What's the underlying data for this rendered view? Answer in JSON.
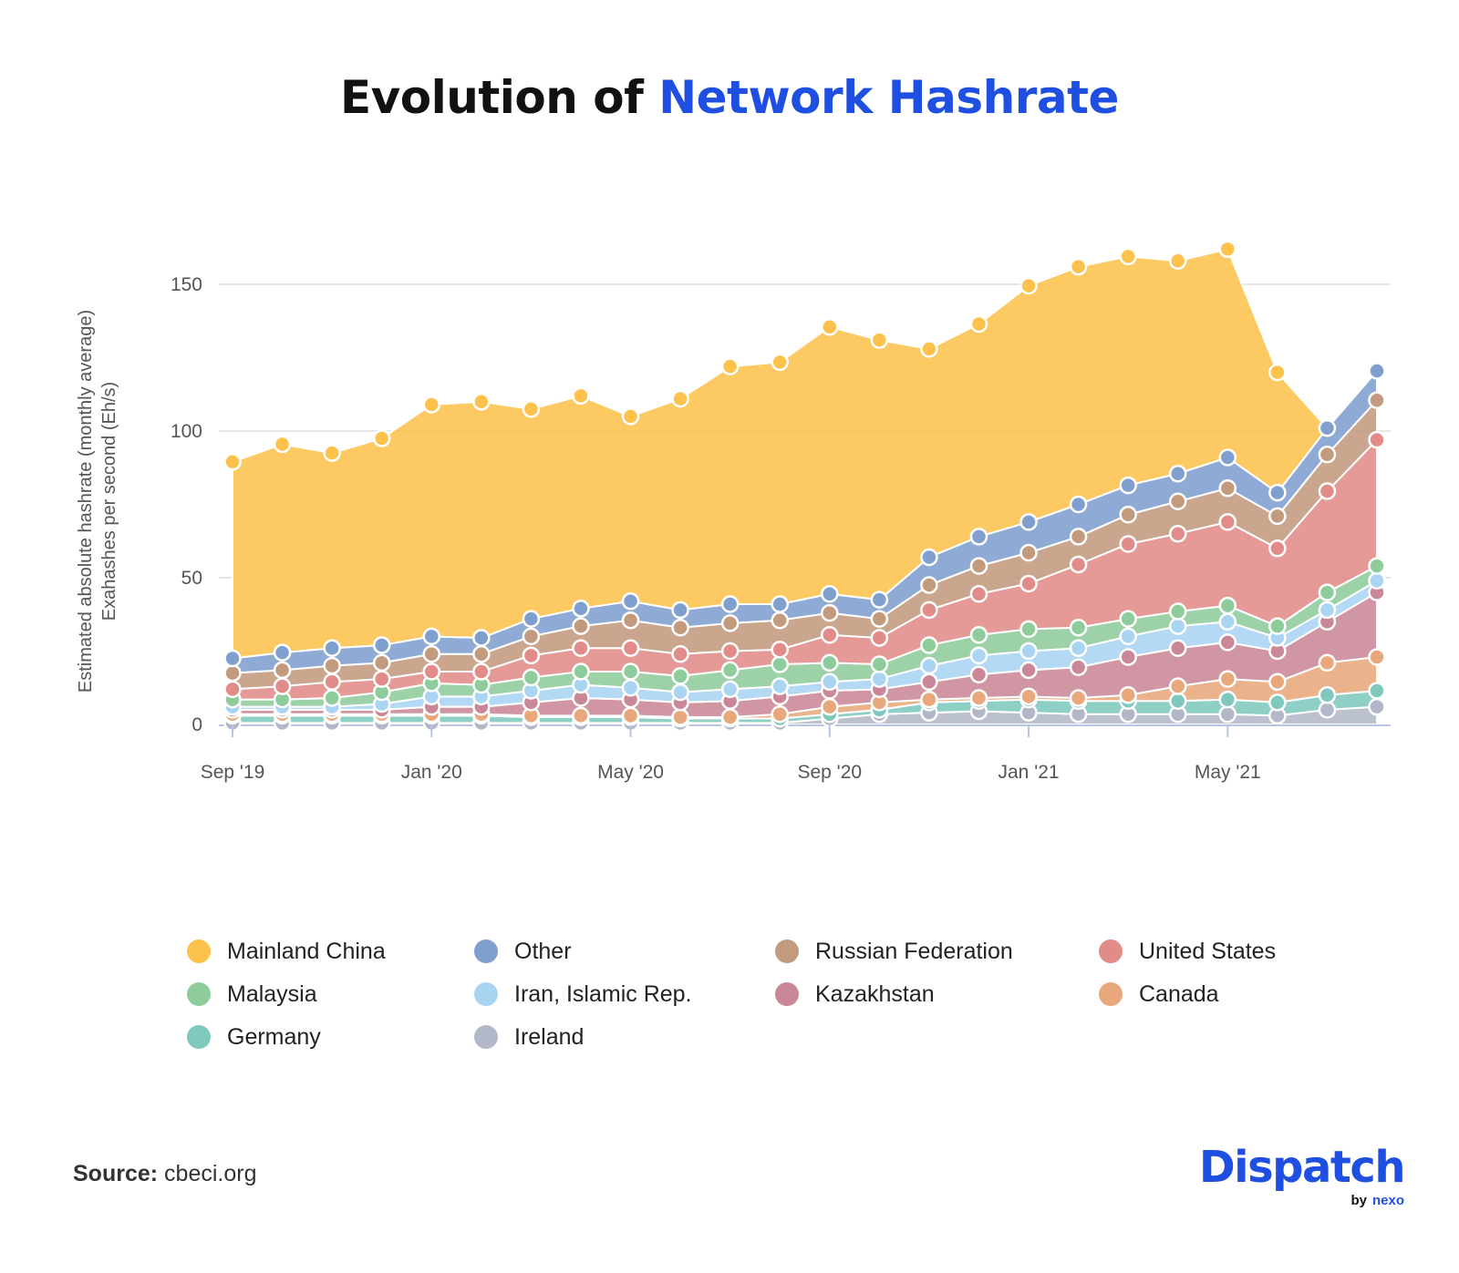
{
  "title": {
    "prefix": "Evolution of ",
    "accent": "Network Hashrate"
  },
  "source": {
    "label": "Source:",
    "value": "cbeci.org"
  },
  "brand": {
    "name": "Dispatch",
    "by": "by",
    "partner": "nexo"
  },
  "colors": {
    "accent": "#1f4fe0",
    "grid": "#e6e6e6",
    "axis": "#b8c4ea"
  },
  "chart_data": {
    "type": "area",
    "stacked": true,
    "ylabel_line1": "Estimated absolute hashrate (monthly average)",
    "ylabel_line2": "Exahashes per second (Eh/s)",
    "xlabel": "",
    "ylim": [
      0,
      150
    ],
    "yticks": [
      0,
      50,
      100,
      150
    ],
    "grid": true,
    "legend_position": "bottom",
    "x": [
      "Sep '19",
      "Oct '19",
      "Nov '19",
      "Dec '19",
      "Jan '20",
      "Feb '20",
      "Mar '20",
      "Apr '20",
      "May '20",
      "Jun '20",
      "Jul '20",
      "Aug '20",
      "Sep '20",
      "Oct '20",
      "Nov '20",
      "Dec '20",
      "Jan '21",
      "Feb '21",
      "Mar '21",
      "Apr '21",
      "May '21",
      "Jun '21",
      "Jul '21",
      "Aug '21"
    ],
    "xticks": [
      "Sep '19",
      "Jan '20",
      "May '20",
      "Sep '20",
      "Jan '21",
      "May '21"
    ],
    "series": [
      {
        "name": "Ireland",
        "color": "#b2b8c8",
        "values": [
          0.5,
          0.5,
          0.5,
          0.5,
          0.5,
          0.5,
          0.5,
          0.5,
          0.5,
          0.5,
          0.5,
          0.5,
          2,
          3.5,
          4,
          4.5,
          4,
          3.5,
          3.5,
          3.5,
          3.5,
          3,
          5,
          6
        ]
      },
      {
        "name": "Germany",
        "color": "#7ec8be",
        "values": [
          2.5,
          2.5,
          2.5,
          2.5,
          2.5,
          2.5,
          2,
          2,
          2,
          1.5,
          1.5,
          1.5,
          1.5,
          1.5,
          3.5,
          3.5,
          4.5,
          4.5,
          4.5,
          4.5,
          5,
          4.5,
          5,
          5.5
        ]
      },
      {
        "name": "Canada",
        "color": "#e8a87c",
        "values": [
          0.5,
          0.5,
          0.5,
          0.5,
          0.5,
          0.5,
          0.5,
          0.5,
          0.5,
          0.5,
          0.5,
          1.5,
          2.5,
          2.5,
          1,
          1,
          1,
          1,
          2,
          5,
          7,
          7,
          11,
          11.5
        ]
      },
      {
        "name": "Kazakhstan",
        "color": "#c98797",
        "values": [
          1.5,
          1.5,
          1.5,
          1.5,
          2.5,
          2.5,
          4.5,
          6,
          5.5,
          5,
          5.5,
          6,
          5.5,
          4.5,
          6,
          8,
          9,
          10.5,
          13,
          13,
          12.5,
          10.5,
          14,
          22
        ]
      },
      {
        "name": "Iran, Islamic Rep.",
        "color": "#a9d4f2",
        "values": [
          1,
          1,
          1,
          2,
          3.5,
          3.5,
          4,
          4.5,
          4,
          3.5,
          4,
          3.5,
          3,
          3.5,
          5.5,
          6.5,
          6.5,
          6.5,
          7,
          7.5,
          7,
          4.5,
          4,
          4
        ]
      },
      {
        "name": "Malaysia",
        "color": "#8fcc9c",
        "values": [
          2.5,
          2.5,
          3,
          4,
          4.5,
          4,
          4.5,
          4.5,
          5.5,
          5.5,
          6.5,
          7.5,
          6.5,
          5,
          7,
          7,
          7.5,
          7,
          6,
          5,
          5.5,
          4,
          6,
          5
        ]
      },
      {
        "name": "United States",
        "color": "#e28c89",
        "values": [
          3.5,
          4.5,
          5.5,
          4.5,
          4,
          4.5,
          7.5,
          8,
          8,
          7.5,
          6.5,
          5,
          9.5,
          9,
          12,
          14,
          15.5,
          21.5,
          25.5,
          26.5,
          28.5,
          26.5,
          34.5,
          43
        ]
      },
      {
        "name": "Russian Federation",
        "color": "#c29a7d",
        "values": [
          5.5,
          5.5,
          5.5,
          5.5,
          6,
          6,
          6.5,
          7.5,
          9.5,
          9,
          9.5,
          10,
          7.5,
          6.5,
          8.5,
          9.5,
          10.5,
          9.5,
          10,
          11,
          11.5,
          11,
          12.5,
          13.5
        ]
      },
      {
        "name": "Other",
        "color": "#7f9fcf",
        "values": [
          5,
          6,
          6,
          6,
          6,
          5.5,
          6,
          6,
          6.5,
          6,
          6.5,
          5.5,
          6.5,
          6.5,
          9.5,
          10,
          10.5,
          11,
          10,
          9.5,
          10.5,
          8,
          9,
          10
        ]
      },
      {
        "name": "Mainland China",
        "color": "#fcc24c",
        "values": [
          67,
          71,
          66.5,
          70.5,
          79,
          80.5,
          71.5,
          72.5,
          63,
          72,
          81,
          82.5,
          91,
          88.5,
          71,
          72.5,
          80.5,
          81,
          78,
          72.5,
          71,
          41,
          0,
          0
        ]
      }
    ]
  }
}
